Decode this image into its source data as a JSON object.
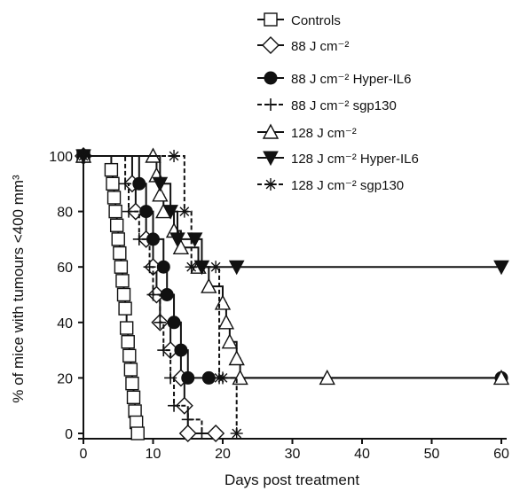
{
  "chart_data": {
    "type": "line",
    "title": "",
    "xlabel": "Days post treatment",
    "ylabel": "% of mice with tumours <400 mm³",
    "xlim": [
      0,
      60
    ],
    "ylim": [
      0,
      100
    ],
    "xticks": [
      "0",
      "10",
      "20",
      "30",
      "40",
      "50",
      "60"
    ],
    "yticks": [
      "0",
      "20",
      "40",
      "60",
      "80",
      "100"
    ],
    "grid": false,
    "legend_position": "top-right",
    "series": [
      {
        "name": "Controls",
        "marker": "square",
        "line": "solid",
        "points": [
          [
            0,
            100
          ],
          [
            4,
            95
          ],
          [
            4.2,
            90
          ],
          [
            4.4,
            85
          ],
          [
            4.6,
            80
          ],
          [
            4.8,
            75
          ],
          [
            5,
            70
          ],
          [
            5.2,
            65
          ],
          [
            5.4,
            60
          ],
          [
            5.6,
            55
          ],
          [
            5.8,
            50
          ],
          [
            6,
            45
          ],
          [
            6.2,
            38
          ],
          [
            6.4,
            33
          ],
          [
            6.6,
            28
          ],
          [
            6.8,
            23
          ],
          [
            7,
            18
          ],
          [
            7.2,
            13
          ],
          [
            7.4,
            8
          ],
          [
            7.6,
            4
          ],
          [
            7.8,
            0
          ]
        ]
      },
      {
        "name": "88 J cm⁻²",
        "marker": "diamond",
        "line": "solid",
        "points": [
          [
            0,
            100
          ],
          [
            7,
            90
          ],
          [
            7.5,
            80
          ],
          [
            9,
            70
          ],
          [
            10,
            60
          ],
          [
            10.5,
            50
          ],
          [
            11,
            40
          ],
          [
            12.5,
            30
          ],
          [
            14,
            20
          ],
          [
            14.5,
            10
          ],
          [
            15,
            0
          ],
          [
            19,
            0
          ]
        ]
      },
      {
        "name": "88 J cm⁻² Hyper-IL6",
        "marker": "circle-filled",
        "line": "solid",
        "points": [
          [
            0,
            100
          ],
          [
            8,
            90
          ],
          [
            9,
            80
          ],
          [
            10,
            70
          ],
          [
            11.5,
            60
          ],
          [
            12,
            50
          ],
          [
            13,
            40
          ],
          [
            14,
            30
          ],
          [
            15,
            20
          ],
          [
            18,
            20
          ],
          [
            60,
            20
          ]
        ]
      },
      {
        "name": "88 J cm⁻² sgp130",
        "marker": "plus",
        "line": "dashed",
        "points": [
          [
            0,
            100
          ],
          [
            6,
            90
          ],
          [
            6.5,
            80
          ],
          [
            8,
            70
          ],
          [
            9.5,
            60
          ],
          [
            10,
            50
          ],
          [
            11,
            40
          ],
          [
            11.5,
            30
          ],
          [
            12.5,
            20
          ],
          [
            13,
            10
          ],
          [
            15,
            5
          ],
          [
            17,
            0
          ]
        ]
      },
      {
        "name": "128 J cm⁻²",
        "marker": "triangle-open",
        "line": "solid",
        "points": [
          [
            0,
            100
          ],
          [
            10,
            100
          ],
          [
            10.5,
            93
          ],
          [
            11,
            86
          ],
          [
            11.5,
            80
          ],
          [
            13,
            73
          ],
          [
            14,
            67
          ],
          [
            16.5,
            60
          ],
          [
            18,
            53
          ],
          [
            20,
            47
          ],
          [
            20.5,
            40
          ],
          [
            21,
            33
          ],
          [
            22,
            27
          ],
          [
            22.5,
            20
          ],
          [
            35,
            20
          ],
          [
            60,
            20
          ]
        ]
      },
      {
        "name": "128 J cm⁻² Hyper-IL6",
        "marker": "triangle-down-filled",
        "line": "solid",
        "points": [
          [
            0,
            100
          ],
          [
            11,
            90
          ],
          [
            12.5,
            80
          ],
          [
            13.5,
            70
          ],
          [
            16,
            70
          ],
          [
            17,
            60
          ],
          [
            22,
            60
          ],
          [
            60,
            60
          ]
        ]
      },
      {
        "name": "128 J cm⁻² sgp130",
        "marker": "asterisk",
        "line": "dashed",
        "points": [
          [
            0,
            100
          ],
          [
            13,
            100
          ],
          [
            14.5,
            80
          ],
          [
            15.5,
            60
          ],
          [
            19,
            60
          ],
          [
            19.5,
            20
          ],
          [
            20,
            20
          ],
          [
            22,
            0
          ]
        ]
      }
    ]
  }
}
